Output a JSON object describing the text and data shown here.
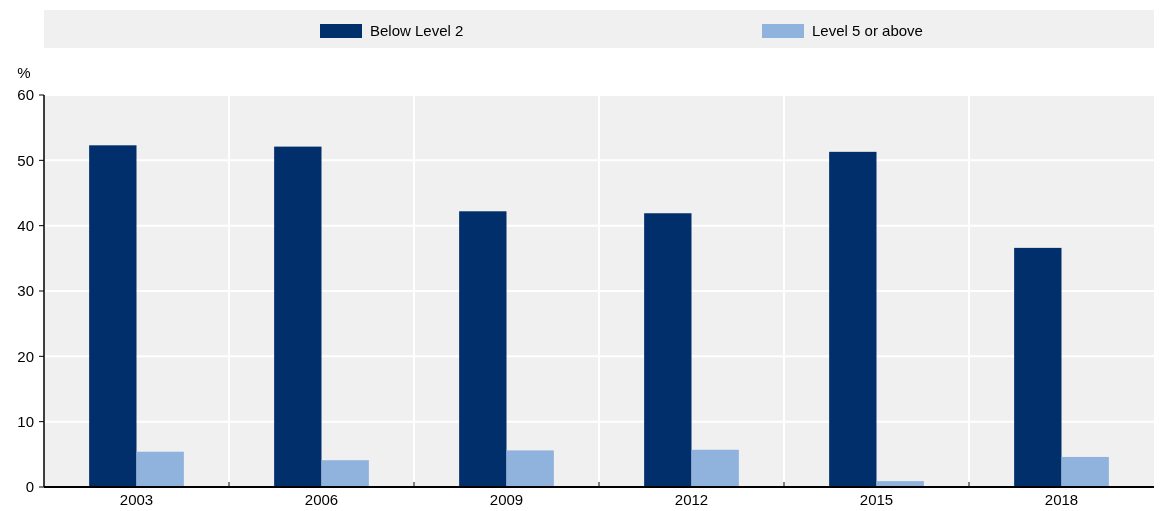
{
  "chart_data": {
    "type": "bar",
    "ylabel": "%",
    "categories": [
      "2003",
      "2006",
      "2009",
      "2012",
      "2015",
      "2018"
    ],
    "series": [
      {
        "name": "Below Level 2",
        "color": "#002f6c",
        "values": [
          52.3,
          52.1,
          42.2,
          41.9,
          51.3,
          36.6
        ]
      },
      {
        "name": "Level 5 or above",
        "color": "#8fb3dc",
        "values": [
          5.4,
          4.1,
          5.6,
          5.7,
          0.9,
          4.6
        ]
      }
    ],
    "ylim": [
      0,
      60
    ],
    "yticks": [
      0,
      10,
      20,
      30,
      40,
      50,
      60
    ],
    "grid": true,
    "legend": "top"
  }
}
